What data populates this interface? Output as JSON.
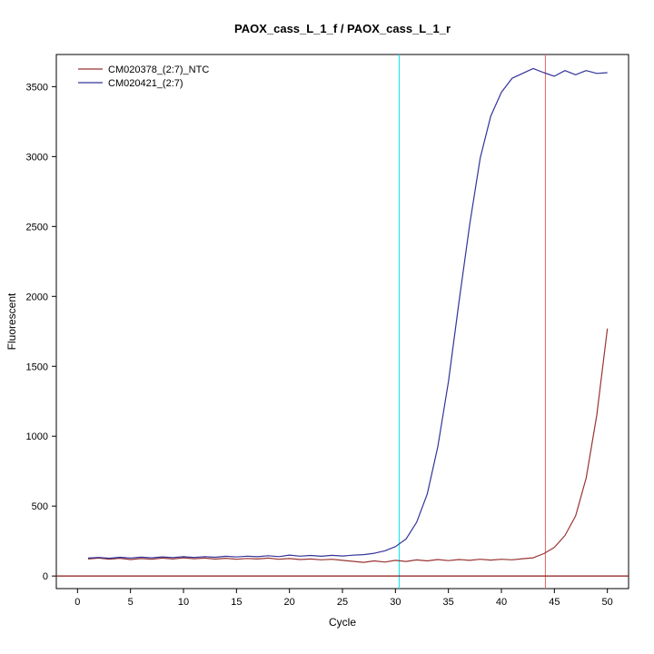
{
  "title": "PAOX_cass_L_1_f / PAOX_cass_L_1_r",
  "chart_data": {
    "type": "line",
    "title": "PAOX_cass_L_1_f / PAOX_cass_L_1_r",
    "xlabel": "Cycle",
    "ylabel": "Fluorescent",
    "xlim": [
      -2,
      52
    ],
    "ylim": [
      -90,
      3730
    ],
    "x_ticks": [
      0,
      5,
      10,
      15,
      20,
      25,
      30,
      35,
      40,
      45,
      50
    ],
    "y_ticks": [
      0,
      500,
      1000,
      1500,
      2000,
      2500,
      3000,
      3500
    ],
    "grid": false,
    "legend_position": "top-left",
    "x": [
      1,
      2,
      3,
      4,
      5,
      6,
      7,
      8,
      9,
      10,
      11,
      12,
      13,
      14,
      15,
      16,
      17,
      18,
      19,
      20,
      21,
      22,
      23,
      24,
      25,
      26,
      27,
      28,
      29,
      30,
      31,
      32,
      33,
      34,
      35,
      36,
      37,
      38,
      39,
      40,
      41,
      42,
      43,
      44,
      45,
      46,
      47,
      48,
      49,
      50
    ],
    "series": [
      {
        "name": "CM020378_(2:7)_NTC",
        "color": "#993333",
        "values": [
          122,
          128,
          120,
          127,
          118,
          125,
          120,
          128,
          122,
          130,
          124,
          128,
          121,
          127,
          120,
          126,
          122,
          128,
          120,
          125,
          118,
          122,
          116,
          120,
          112,
          105,
          98,
          108,
          100,
          112,
          104,
          115,
          108,
          118,
          110,
          118,
          112,
          120,
          114,
          120,
          116,
          124,
          130,
          160,
          205,
          290,
          430,
          700,
          1150,
          1770
        ]
      },
      {
        "name": "CM020421_(2:7)",
        "color": "#333399",
        "values": [
          128,
          133,
          127,
          134,
          129,
          135,
          130,
          137,
          132,
          138,
          133,
          139,
          134,
          141,
          136,
          142,
          138,
          145,
          139,
          150,
          142,
          147,
          141,
          148,
          143,
          149,
          153,
          163,
          180,
          210,
          265,
          385,
          585,
          925,
          1390,
          1960,
          2510,
          2990,
          3290,
          3460,
          3560,
          3595,
          3630,
          3600,
          3575,
          3615,
          3585,
          3615,
          3595,
          3600
        ]
      }
    ],
    "vlines": [
      {
        "x": 30.35,
        "color": "#00e5ee",
        "name": "ct-marker-sample"
      },
      {
        "x": 44.15,
        "color": "#dd6666",
        "name": "ct-marker-ntc"
      }
    ],
    "hlines": [
      {
        "y": 0,
        "color": "#8b1a1a",
        "name": "baseline-threshold"
      }
    ]
  }
}
